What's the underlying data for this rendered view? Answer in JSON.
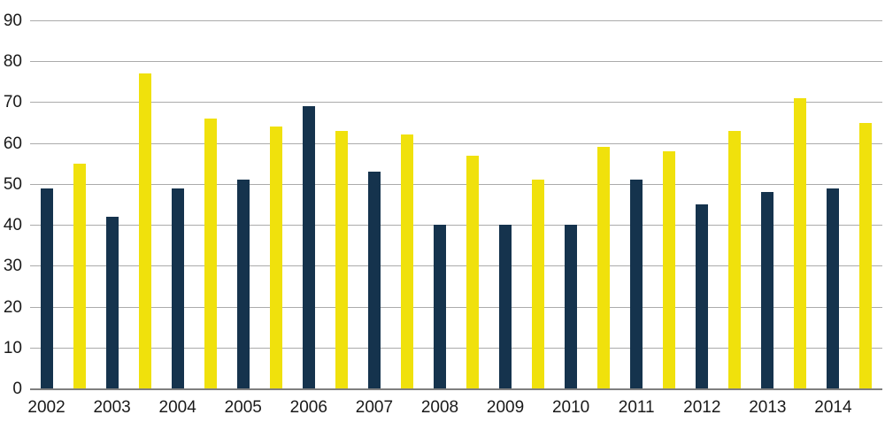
{
  "chart_data": {
    "type": "bar",
    "title": "",
    "xlabel": "",
    "ylabel": "",
    "categories": [
      "2002",
      "2003",
      "2004",
      "2005",
      "2006",
      "2007",
      "2008",
      "2009",
      "2010",
      "2011",
      "2012",
      "2013",
      "2014"
    ],
    "series": [
      {
        "name": "dark-navy-series",
        "color": "#15334D",
        "values": [
          49,
          42,
          49,
          51,
          69,
          53,
          40,
          40,
          40,
          51,
          45,
          48,
          49
        ]
      },
      {
        "name": "yellow-series",
        "color": "#F0E10C",
        "values": [
          55,
          77,
          66,
          64,
          63,
          62,
          57,
          51,
          59,
          58,
          63,
          71,
          65
        ]
      }
    ],
    "ylim": [
      0,
      90
    ],
    "ytick_step": 10,
    "yticks": [
      0,
      10,
      20,
      30,
      40,
      50,
      60,
      70,
      80,
      90
    ],
    "grid": "horizontal",
    "legend": "none",
    "bar_layout": "26 evenly spaced bars alternating series; year label centered under dark bar"
  },
  "style": {
    "background": "#ffffff",
    "gridline_color": "#ABABAB",
    "axis_color": "#7F7F7F",
    "text_color": "#1A1A1A"
  }
}
